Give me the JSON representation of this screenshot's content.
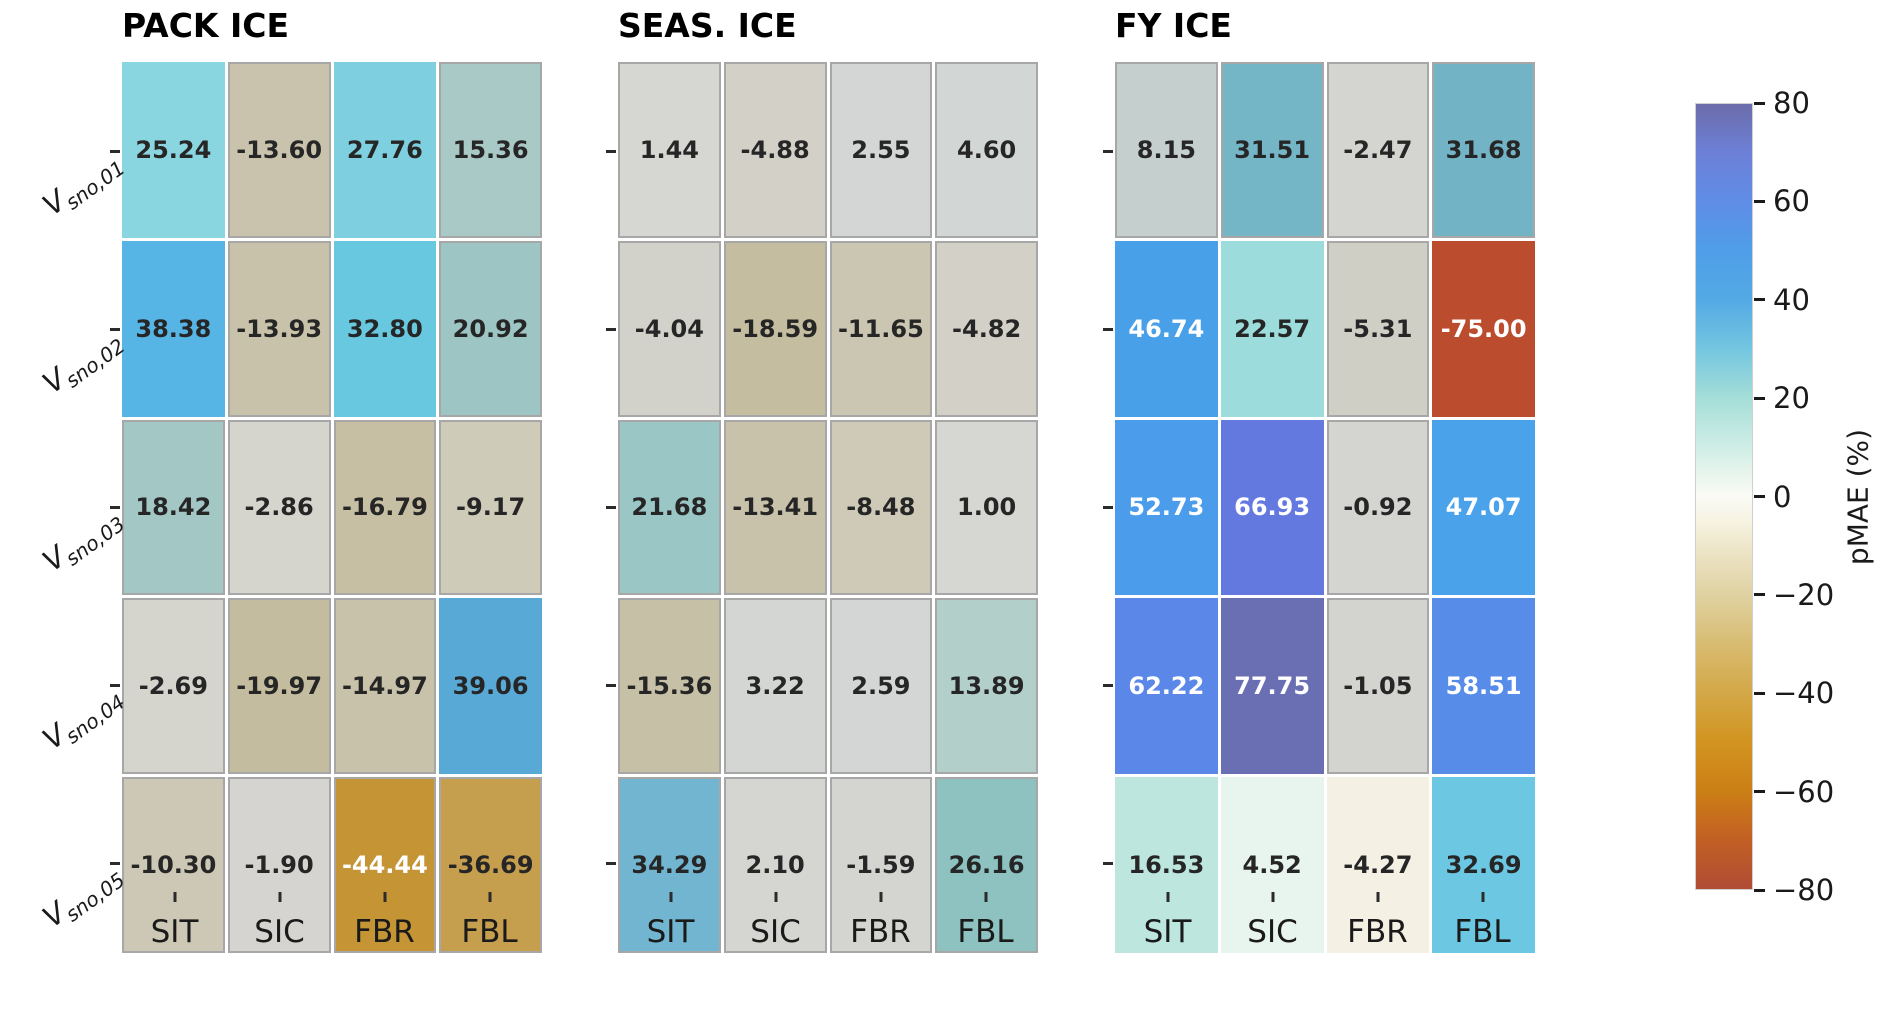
{
  "columns": [
    "SIT",
    "SIC",
    "FBR",
    "FBL"
  ],
  "rows": [
    {
      "base": "V",
      "sub": "sno,01"
    },
    {
      "base": "V",
      "sub": "sno,02"
    },
    {
      "base": "V",
      "sub": "sno,03"
    },
    {
      "base": "V",
      "sub": "sno,04"
    },
    {
      "base": "V",
      "sub": "sno,05"
    }
  ],
  "panels": [
    {
      "title": "PACK ICE",
      "cells": [
        [
          {
            "label": "25.24",
            "bg": "#8ad6e0",
            "fg": "#262626",
            "muted": false
          },
          {
            "label": "-13.60",
            "bg": "#c9c3ad",
            "fg": "#262626",
            "muted": true
          },
          {
            "label": "27.76",
            "bg": "#7ed0e0",
            "fg": "#262626",
            "muted": false
          },
          {
            "label": "15.36",
            "bg": "#a9c9c6",
            "fg": "#262626",
            "muted": true
          }
        ],
        [
          {
            "label": "38.38",
            "bg": "#57b5e6",
            "fg": "#262626",
            "muted": false
          },
          {
            "label": "-13.93",
            "bg": "#c8c2ab",
            "fg": "#262626",
            "muted": true
          },
          {
            "label": "32.80",
            "bg": "#68c8e0",
            "fg": "#262626",
            "muted": false
          },
          {
            "label": "20.92",
            "bg": "#9cc5c3",
            "fg": "#262626",
            "muted": true
          }
        ],
        [
          {
            "label": "18.42",
            "bg": "#a2c7c5",
            "fg": "#262626",
            "muted": true
          },
          {
            "label": "-2.86",
            "bg": "#d5d4cd",
            "fg": "#262626",
            "muted": true
          },
          {
            "label": "-16.79",
            "bg": "#c6bfa4",
            "fg": "#262626",
            "muted": true
          },
          {
            "label": "-9.17",
            "bg": "#cfcbb9",
            "fg": "#262626",
            "muted": true
          }
        ],
        [
          {
            "label": "-2.69",
            "bg": "#d5d4cd",
            "fg": "#262626",
            "muted": true
          },
          {
            "label": "-19.97",
            "bg": "#c3bc9e",
            "fg": "#262626",
            "muted": true
          },
          {
            "label": "-14.97",
            "bg": "#c8c2aa",
            "fg": "#262626",
            "muted": true
          },
          {
            "label": "39.06",
            "bg": "#58a9d6",
            "fg": "#262626",
            "muted": false
          }
        ],
        [
          {
            "label": "-10.30",
            "bg": "#cdc8b5",
            "fg": "#262626",
            "muted": true
          },
          {
            "label": "-1.90",
            "bg": "#d5d4d0",
            "fg": "#262626",
            "muted": true
          },
          {
            "label": "-44.44",
            "bg": "#c49435",
            "fg": "#ffffff",
            "muted": true
          },
          {
            "label": "-36.69",
            "bg": "#c59e4e",
            "fg": "#262626",
            "muted": true
          }
        ]
      ]
    },
    {
      "title": "SEAS. ICE",
      "cells": [
        [
          {
            "label": "1.44",
            "bg": "#d6d7d3",
            "fg": "#262626",
            "muted": true
          },
          {
            "label": "-4.88",
            "bg": "#d3d1c7",
            "fg": "#262626",
            "muted": true
          },
          {
            "label": "2.55",
            "bg": "#d3d6d4",
            "fg": "#262626",
            "muted": true
          },
          {
            "label": "4.60",
            "bg": "#d2d6d4",
            "fg": "#262626",
            "muted": true
          }
        ],
        [
          {
            "label": "-4.04",
            "bg": "#d3d2ca",
            "fg": "#262626",
            "muted": true
          },
          {
            "label": "-18.59",
            "bg": "#c4bd9f",
            "fg": "#262626",
            "muted": true
          },
          {
            "label": "-11.65",
            "bg": "#cbc6b1",
            "fg": "#262626",
            "muted": true
          },
          {
            "label": "-4.82",
            "bg": "#d2d0c7",
            "fg": "#262626",
            "muted": true
          }
        ],
        [
          {
            "label": "21.68",
            "bg": "#9ac6c6",
            "fg": "#262626",
            "muted": true
          },
          {
            "label": "-13.41",
            "bg": "#c8c2ab",
            "fg": "#262626",
            "muted": true
          },
          {
            "label": "-8.48",
            "bg": "#cecab7",
            "fg": "#262626",
            "muted": true
          },
          {
            "label": "1.00",
            "bg": "#d6d6d2",
            "fg": "#262626",
            "muted": true
          }
        ],
        [
          {
            "label": "-15.36",
            "bg": "#c6c0a7",
            "fg": "#262626",
            "muted": true
          },
          {
            "label": "3.22",
            "bg": "#d3d6d3",
            "fg": "#262626",
            "muted": true
          },
          {
            "label": "2.59",
            "bg": "#d3d6d4",
            "fg": "#262626",
            "muted": true
          },
          {
            "label": "13.89",
            "bg": "#b3cfca",
            "fg": "#262626",
            "muted": true
          }
        ],
        [
          {
            "label": "34.29",
            "bg": "#72b5d0",
            "fg": "#262626",
            "muted": true
          },
          {
            "label": "2.10",
            "bg": "#d5d5d1",
            "fg": "#262626",
            "muted": true
          },
          {
            "label": "-1.59",
            "bg": "#d4d4d0",
            "fg": "#262626",
            "muted": true
          },
          {
            "label": "26.16",
            "bg": "#8dc2c1",
            "fg": "#262626",
            "muted": true
          }
        ]
      ]
    },
    {
      "title": "FY ICE",
      "cells": [
        [
          {
            "label": "8.15",
            "bg": "#c5cfce",
            "fg": "#262626",
            "muted": true
          },
          {
            "label": "31.51",
            "bg": "#74b5c6",
            "fg": "#262626",
            "muted": true
          },
          {
            "label": "-2.47",
            "bg": "#d4d4d0",
            "fg": "#262626",
            "muted": true
          },
          {
            "label": "31.68",
            "bg": "#72b3c6",
            "fg": "#262626",
            "muted": true
          }
        ],
        [
          {
            "label": "46.74",
            "bg": "#47a0e8",
            "fg": "#ffffff",
            "muted": false
          },
          {
            "label": "22.57",
            "bg": "#9cdcdc",
            "fg": "#262626",
            "muted": false
          },
          {
            "label": "-5.31",
            "bg": "#d0cfc6",
            "fg": "#262626",
            "muted": true
          },
          {
            "label": "-75.00",
            "bg": "#bc4c2e",
            "fg": "#ffffff",
            "muted": false
          }
        ],
        [
          {
            "label": "52.73",
            "bg": "#4b9cea",
            "fg": "#ffffff",
            "muted": false
          },
          {
            "label": "66.93",
            "bg": "#6379e0",
            "fg": "#ffffff",
            "muted": false
          },
          {
            "label": "-0.92",
            "bg": "#d4d4d1",
            "fg": "#262626",
            "muted": true
          },
          {
            "label": "47.07",
            "bg": "#49a2ea",
            "fg": "#ffffff",
            "muted": false
          }
        ],
        [
          {
            "label": "62.22",
            "bg": "#5a87e8",
            "fg": "#ffffff",
            "muted": false
          },
          {
            "label": "77.75",
            "bg": "#6a6fb4",
            "fg": "#ffffff",
            "muted": false
          },
          {
            "label": "-1.05",
            "bg": "#d3d3d0",
            "fg": "#262626",
            "muted": true
          },
          {
            "label": "58.51",
            "bg": "#578ce9",
            "fg": "#ffffff",
            "muted": false
          }
        ],
        [
          {
            "label": "16.53",
            "bg": "#bce6de",
            "fg": "#262626",
            "muted": false
          },
          {
            "label": "4.52",
            "bg": "#e8f4ee",
            "fg": "#262626",
            "muted": false
          },
          {
            "label": "-4.27",
            "bg": "#f4f1e4",
            "fg": "#262626",
            "muted": false
          },
          {
            "label": "32.69",
            "bg": "#6cc8e2",
            "fg": "#262626",
            "muted": false
          }
        ]
      ]
    }
  ],
  "colorbar": {
    "label": "pMAE (%)",
    "ticks": [
      {
        "value": 80,
        "text": "80"
      },
      {
        "value": 60,
        "text": "60"
      },
      {
        "value": 40,
        "text": "40"
      },
      {
        "value": 20,
        "text": "20"
      },
      {
        "value": 0,
        "text": "0"
      },
      {
        "value": -20,
        "text": "−20"
      },
      {
        "value": -40,
        "text": "−40"
      },
      {
        "value": -60,
        "text": "−60"
      },
      {
        "value": -80,
        "text": "−80"
      }
    ],
    "vmin": -80,
    "vmax": 80,
    "stops": [
      {
        "v": 80,
        "c": "#6c6caa"
      },
      {
        "v": 70,
        "c": "#6d80d8"
      },
      {
        "v": 60,
        "c": "#5f8de6"
      },
      {
        "v": 50,
        "c": "#4f9ee9"
      },
      {
        "v": 40,
        "c": "#53aae4"
      },
      {
        "v": 30,
        "c": "#74c6e0"
      },
      {
        "v": 20,
        "c": "#a5ded8"
      },
      {
        "v": 10,
        "c": "#cfeee6"
      },
      {
        "v": 5,
        "c": "#e6f4ec"
      },
      {
        "v": 0,
        "c": "#fbfbf6"
      },
      {
        "v": -5,
        "c": "#f6f3e2"
      },
      {
        "v": -10,
        "c": "#efe7cb"
      },
      {
        "v": -20,
        "c": "#dfd2a2"
      },
      {
        "v": -30,
        "c": "#d8bc72"
      },
      {
        "v": -40,
        "c": "#d3a847"
      },
      {
        "v": -50,
        "c": "#d29420"
      },
      {
        "v": -60,
        "c": "#cb7f15"
      },
      {
        "v": -70,
        "c": "#c25f24"
      },
      {
        "v": -80,
        "c": "#b04c35"
      }
    ]
  },
  "chart_data": {
    "type": "heatmap",
    "x": [
      "SIT",
      "SIC",
      "FBR",
      "FBL"
    ],
    "y": [
      "V_sno,01",
      "V_sno,02",
      "V_sno,03",
      "V_sno,04",
      "V_sno,05"
    ],
    "colorbar_label": "pMAE (%)",
    "vmin": -80,
    "vmax": 80,
    "panels": [
      {
        "title": "PACK ICE",
        "values": [
          [
            25.24,
            -13.6,
            27.76,
            15.36
          ],
          [
            38.38,
            -13.93,
            32.8,
            20.92
          ],
          [
            18.42,
            -2.86,
            -16.79,
            -9.17
          ],
          [
            -2.69,
            -19.97,
            -14.97,
            39.06
          ],
          [
            -10.3,
            -1.9,
            -44.44,
            -36.69
          ]
        ],
        "faded_mask": [
          [
            false,
            true,
            false,
            true
          ],
          [
            false,
            true,
            false,
            true
          ],
          [
            true,
            true,
            true,
            true
          ],
          [
            true,
            true,
            true,
            false
          ],
          [
            true,
            true,
            true,
            true
          ]
        ]
      },
      {
        "title": "SEAS. ICE",
        "values": [
          [
            1.44,
            -4.88,
            2.55,
            4.6
          ],
          [
            -4.04,
            -18.59,
            -11.65,
            -4.82
          ],
          [
            21.68,
            -13.41,
            -8.48,
            1.0
          ],
          [
            -15.36,
            3.22,
            2.59,
            13.89
          ],
          [
            34.29,
            2.1,
            -1.59,
            26.16
          ]
        ],
        "faded_mask": [
          [
            true,
            true,
            true,
            true
          ],
          [
            true,
            true,
            true,
            true
          ],
          [
            true,
            true,
            true,
            true
          ],
          [
            true,
            true,
            true,
            true
          ],
          [
            true,
            true,
            true,
            true
          ]
        ]
      },
      {
        "title": "FY ICE",
        "values": [
          [
            8.15,
            31.51,
            -2.47,
            31.68
          ],
          [
            46.74,
            22.57,
            -5.31,
            -75.0
          ],
          [
            52.73,
            66.93,
            -0.92,
            47.07
          ],
          [
            62.22,
            77.75,
            -1.05,
            58.51
          ],
          [
            16.53,
            4.52,
            -4.27,
            32.69
          ]
        ],
        "faded_mask": [
          [
            true,
            true,
            true,
            true
          ],
          [
            false,
            false,
            true,
            false
          ],
          [
            false,
            false,
            true,
            false
          ],
          [
            false,
            false,
            true,
            false
          ],
          [
            false,
            false,
            false,
            false
          ]
        ]
      }
    ]
  }
}
